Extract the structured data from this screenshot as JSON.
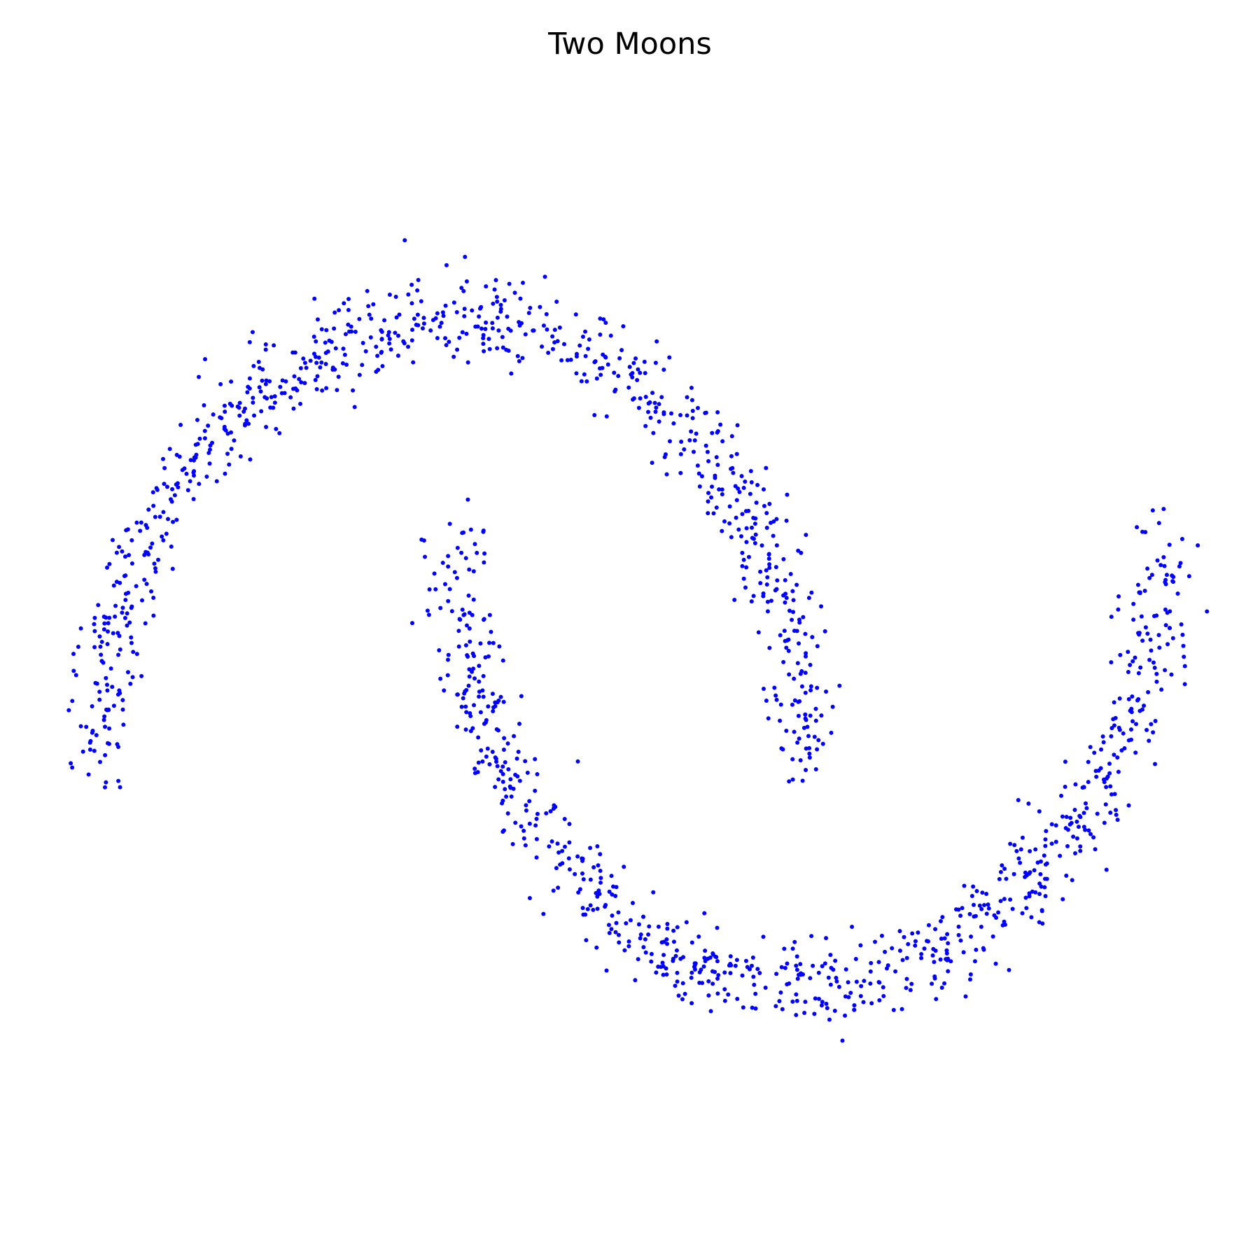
{
  "chart_data": {
    "type": "scatter",
    "title": "Two Moons",
    "xlabel": "",
    "ylabel": "",
    "axes_visible": false,
    "grid": false,
    "legend": "none",
    "xlim": [
      -1.1,
      2.1
    ],
    "ylim": [
      -0.68,
      1.2
    ],
    "marker_color": "#0000ff",
    "series": [
      {
        "arc_count": 800,
        "noise": 0.05,
        "arc": {
          "center": [
            0,
            0
          ],
          "radius": 1,
          "angle_from_deg": 0,
          "angle_to_deg": 180
        },
        "points": [
          [
            1.0,
            0.0
          ],
          [
            0.95,
            0.31
          ],
          [
            0.81,
            0.59
          ],
          [
            0.59,
            0.81
          ],
          [
            0.31,
            0.95
          ],
          [
            0.0,
            1.0
          ],
          [
            -0.31,
            0.95
          ],
          [
            -0.59,
            0.81
          ],
          [
            -0.81,
            0.59
          ],
          [
            -0.95,
            0.31
          ],
          [
            -1.0,
            0.0
          ]
        ]
      },
      {
        "arc_count": 800,
        "noise": 0.05,
        "arc": {
          "center": [
            1,
            0.5
          ],
          "radius": 1,
          "angle_from_deg": 180,
          "angle_to_deg": 360
        },
        "points": [
          [
            0.0,
            0.5
          ],
          [
            0.05,
            0.19
          ],
          [
            0.19,
            -0.09
          ],
          [
            0.41,
            -0.31
          ],
          [
            0.69,
            -0.45
          ],
          [
            1.0,
            -0.5
          ],
          [
            1.31,
            -0.45
          ],
          [
            1.59,
            -0.31
          ],
          [
            1.81,
            -0.09
          ],
          [
            1.95,
            0.19
          ],
          [
            2.0,
            0.5
          ]
        ]
      }
    ]
  }
}
